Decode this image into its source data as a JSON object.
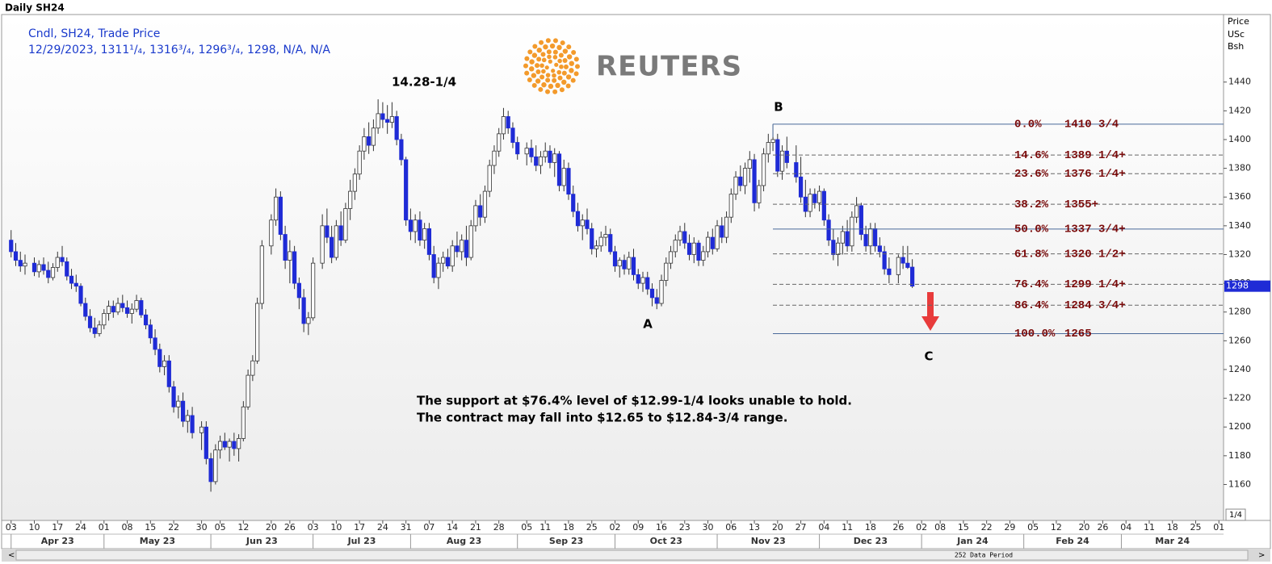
{
  "page_title": "Daily SH24",
  "chart_data": {
    "type": "candlestick",
    "legend": [
      "Cndl, SH24, Trade Price",
      "12/29/2023, 1311¹/₄, 1316³/₄, 1296³/₄, 1298, N/A, N/A"
    ],
    "y_label": [
      "Price",
      "USc",
      "Bsh"
    ],
    "price_fraction": "1/4",
    "data_period": "252 Data Period",
    "logo": "REUTERS",
    "annotations": [
      "14.28-1/4",
      "B",
      "A",
      "C"
    ],
    "note": [
      "The support at $76.4% level of $12.99-1/4 looks unable to hold.",
      "The contract may fall into $12.65 to $12.84-3/4 range."
    ],
    "up_color": "#ffffff",
    "down_color": "#1f2bd6",
    "fib_color": "#7a0a0a",
    "xlim": [
      "2023-03-31",
      "2024-04-02"
    ],
    "ylim": [
      1135,
      1487
    ],
    "yticks": [
      1160,
      1180,
      1200,
      1220,
      1240,
      1260,
      1280,
      1300,
      1320,
      1340,
      1360,
      1380,
      1400,
      1420,
      1440
    ],
    "xticks": [
      {
        "value": "2023-04-03",
        "label": "03"
      },
      {
        "value": "2023-04-10",
        "label": "10"
      },
      {
        "value": "2023-04-17",
        "label": "17"
      },
      {
        "value": "2023-04-24",
        "label": "24"
      },
      {
        "value": "2023-05-01",
        "label": "01"
      },
      {
        "value": "2023-05-08",
        "label": "08"
      },
      {
        "value": "2023-05-15",
        "label": "15"
      },
      {
        "value": "2023-05-22",
        "label": "22"
      },
      {
        "value": "2023-05-30",
        "label": "30"
      },
      {
        "value": "2023-06-05",
        "label": "05"
      },
      {
        "value": "2023-06-12",
        "label": "12"
      },
      {
        "value": "2023-06-20",
        "label": "20"
      },
      {
        "value": "2023-06-26",
        "label": "26"
      },
      {
        "value": "2023-07-03",
        "label": "03"
      },
      {
        "value": "2023-07-10",
        "label": "10"
      },
      {
        "value": "2023-07-17",
        "label": "17"
      },
      {
        "value": "2023-07-24",
        "label": "24"
      },
      {
        "value": "2023-07-31",
        "label": "31"
      },
      {
        "value": "2023-08-07",
        "label": "07"
      },
      {
        "value": "2023-08-14",
        "label": "14"
      },
      {
        "value": "2023-08-21",
        "label": "21"
      },
      {
        "value": "2023-08-28",
        "label": "28"
      },
      {
        "value": "2023-09-05",
        "label": "05"
      },
      {
        "value": "2023-09-11",
        "label": "11"
      },
      {
        "value": "2023-09-18",
        "label": "18"
      },
      {
        "value": "2023-09-25",
        "label": "25"
      },
      {
        "value": "2023-10-02",
        "label": "02"
      },
      {
        "value": "2023-10-09",
        "label": "09"
      },
      {
        "value": "2023-10-16",
        "label": "16"
      },
      {
        "value": "2023-10-23",
        "label": "23"
      },
      {
        "value": "2023-10-30",
        "label": "30"
      },
      {
        "value": "2023-11-06",
        "label": "06"
      },
      {
        "value": "2023-11-13",
        "label": "13"
      },
      {
        "value": "2023-11-20",
        "label": "20"
      },
      {
        "value": "2023-11-27",
        "label": "27"
      },
      {
        "value": "2023-12-04",
        "label": "04"
      },
      {
        "value": "2023-12-11",
        "label": "11"
      },
      {
        "value": "2023-12-18",
        "label": "18"
      },
      {
        "value": "2023-12-26",
        "label": "26"
      },
      {
        "value": "2024-01-02",
        "label": "02"
      },
      {
        "value": "2024-01-08",
        "label": "08"
      },
      {
        "value": "2024-01-15",
        "label": "15"
      },
      {
        "value": "2024-01-22",
        "label": "22"
      },
      {
        "value": "2024-01-29",
        "label": "29"
      },
      {
        "value": "2024-02-05",
        "label": "05"
      },
      {
        "value": "2024-02-12",
        "label": "12"
      },
      {
        "value": "2024-02-20",
        "label": "20"
      },
      {
        "value": "2024-02-26",
        "label": "26"
      },
      {
        "value": "2024-03-04",
        "label": "04"
      },
      {
        "value": "2024-03-11",
        "label": "11"
      },
      {
        "value": "2024-03-18",
        "label": "18"
      },
      {
        "value": "2024-03-25",
        "label": "25"
      },
      {
        "value": "2024-04-01",
        "label": "01"
      }
    ],
    "months": [
      {
        "value": "2023-04-03",
        "label": "Apr 23"
      },
      {
        "value": "2023-05-01",
        "label": "May 23"
      },
      {
        "value": "2023-06-01",
        "label": "Jun 23"
      },
      {
        "value": "2023-07-03",
        "label": "Jul 23"
      },
      {
        "value": "2023-08-01",
        "label": "Aug 23"
      },
      {
        "value": "2023-09-01",
        "label": "Sep 23"
      },
      {
        "value": "2023-10-02",
        "label": "Oct 23"
      },
      {
        "value": "2023-11-01",
        "label": "Nov 23"
      },
      {
        "value": "2023-12-01",
        "label": "Dec 23"
      },
      {
        "value": "2024-01-02",
        "label": "Jan 24"
      },
      {
        "value": "2024-02-01",
        "label": "Feb 24"
      },
      {
        "value": "2024-03-01",
        "label": "Mar 24"
      }
    ],
    "fibonacci": [
      {
        "ratio": "0.0%",
        "level": {
          "value": 1410.75,
          "label": "1410 3/4"
        },
        "line": "solid"
      },
      {
        "ratio": "14.6%",
        "level": {
          "value": 1389.25,
          "label": "1389 1/4+"
        },
        "line": "dashed"
      },
      {
        "ratio": "23.6%",
        "level": {
          "value": 1376.25,
          "label": "1376 1/4+"
        },
        "line": "dashed"
      },
      {
        "ratio": "38.2%",
        "level": {
          "value": 1355,
          "label": "1355+"
        },
        "line": "dashed"
      },
      {
        "ratio": "50.0%",
        "level": {
          "value": 1337.75,
          "label": "1337 3/4+"
        },
        "line": "solid"
      },
      {
        "ratio": "61.8%",
        "level": {
          "value": 1320.5,
          "label": "1320 1/2+"
        },
        "line": "dashed"
      },
      {
        "ratio": "76.4%",
        "level": {
          "value": 1299.25,
          "label": "1299 1/4+"
        },
        "line": "dashed"
      },
      {
        "ratio": "86.4%",
        "level": {
          "value": 1284.75,
          "label": "1284 3/4+"
        },
        "line": "dashed"
      },
      {
        "ratio": "100.0%",
        "level": {
          "value": 1265,
          "label": "1265"
        },
        "line": "solid"
      }
    ],
    "x": [
      "2023-04-03",
      "2023-04-04",
      "2023-04-05",
      "2023-04-06",
      "2023-04-10",
      "2023-04-11",
      "2023-04-12",
      "2023-04-13",
      "2023-04-14",
      "2023-04-17",
      "2023-04-18",
      "2023-04-19",
      "2023-04-20",
      "2023-04-21",
      "2023-04-24",
      "2023-04-25",
      "2023-04-26",
      "2023-04-27",
      "2023-04-28",
      "2023-05-01",
      "2023-05-02",
      "2023-05-03",
      "2023-05-04",
      "2023-05-05",
      "2023-05-08",
      "2023-05-09",
      "2023-05-10",
      "2023-05-11",
      "2023-05-12",
      "2023-05-15",
      "2023-05-16",
      "2023-05-17",
      "2023-05-18",
      "2023-05-19",
      "2023-05-22",
      "2023-05-23",
      "2023-05-24",
      "2023-05-25",
      "2023-05-26",
      "2023-05-30",
      "2023-05-31",
      "2023-06-01",
      "2023-06-02",
      "2023-06-05",
      "2023-06-06",
      "2023-06-07",
      "2023-06-08",
      "2023-06-09",
      "2023-06-12",
      "2023-06-13",
      "2023-06-14",
      "2023-06-15",
      "2023-06-16",
      "2023-06-20",
      "2023-06-21",
      "2023-06-22",
      "2023-06-23",
      "2023-06-26",
      "2023-06-27",
      "2023-06-28",
      "2023-06-29",
      "2023-06-30",
      "2023-07-03",
      "2023-07-05",
      "2023-07-06",
      "2023-07-07",
      "2023-07-10",
      "2023-07-11",
      "2023-07-12",
      "2023-07-13",
      "2023-07-14",
      "2023-07-17",
      "2023-07-18",
      "2023-07-19",
      "2023-07-20",
      "2023-07-21",
      "2023-07-24",
      "2023-07-25",
      "2023-07-26",
      "2023-07-27",
      "2023-07-28",
      "2023-07-31",
      "2023-08-01",
      "2023-08-02",
      "2023-08-03",
      "2023-08-04",
      "2023-08-07",
      "2023-08-08",
      "2023-08-09",
      "2023-08-10",
      "2023-08-11",
      "2023-08-14",
      "2023-08-15",
      "2023-08-16",
      "2023-08-17",
      "2023-08-18",
      "2023-08-21",
      "2023-08-22",
      "2023-08-23",
      "2023-08-24",
      "2023-08-25",
      "2023-08-28",
      "2023-08-29",
      "2023-08-30",
      "2023-08-31",
      "2023-09-01",
      "2023-09-05",
      "2023-09-06",
      "2023-09-07",
      "2023-09-08",
      "2023-09-11",
      "2023-09-12",
      "2023-09-13",
      "2023-09-14",
      "2023-09-15",
      "2023-09-18",
      "2023-09-19",
      "2023-09-20",
      "2023-09-21",
      "2023-09-22",
      "2023-09-25",
      "2023-09-26",
      "2023-09-27",
      "2023-09-28",
      "2023-09-29",
      "2023-10-02",
      "2023-10-03",
      "2023-10-04",
      "2023-10-05",
      "2023-10-06",
      "2023-10-09",
      "2023-10-10",
      "2023-10-11",
      "2023-10-12",
      "2023-10-13",
      "2023-10-16",
      "2023-10-17",
      "2023-10-18",
      "2023-10-19",
      "2023-10-20",
      "2023-10-23",
      "2023-10-24",
      "2023-10-25",
      "2023-10-26",
      "2023-10-27",
      "2023-10-30",
      "2023-10-31",
      "2023-11-01",
      "2023-11-02",
      "2023-11-03",
      "2023-11-06",
      "2023-11-07",
      "2023-11-08",
      "2023-11-09",
      "2023-11-10",
      "2023-11-13",
      "2023-11-14",
      "2023-11-15",
      "2023-11-16",
      "2023-11-17",
      "2023-11-20",
      "2023-11-21",
      "2023-11-22",
      "2023-11-24",
      "2023-11-27",
      "2023-11-28",
      "2023-11-29",
      "2023-11-30",
      "2023-12-01",
      "2023-12-04",
      "2023-12-05",
      "2023-12-06",
      "2023-12-07",
      "2023-12-08",
      "2023-12-11",
      "2023-12-12",
      "2023-12-13",
      "2023-12-14",
      "2023-12-15",
      "2023-12-18",
      "2023-12-19",
      "2023-12-20",
      "2023-12-21",
      "2023-12-22",
      "2023-12-26",
      "2023-12-27",
      "2023-12-28",
      "2023-12-29"
    ],
    "open": [
      1330,
      1322,
      1316,
      1312,
      1314,
      1308,
      1313,
      1309,
      1304,
      1311,
      1318,
      1315,
      1305,
      1300,
      1298,
      1286,
      1277,
      1269,
      1265,
      1271,
      1279,
      1284,
      1280,
      1286,
      1283,
      1279,
      1282,
      1288,
      1278,
      1271,
      1262,
      1254,
      1242,
      1246,
      1228,
      1214,
      1218,
      1204,
      1208,
      1196,
      1200,
      1178,
      1162,
      1184,
      1190,
      1186,
      1190,
      1185,
      1192,
      1214,
      1236,
      1246,
      1286,
      1326,
      1344,
      1360,
      1334,
      1316,
      1322,
      1300,
      1290,
      1272,
      1276,
      1314,
      1340,
      1332,
      1318,
      1340,
      1330,
      1352,
      1364,
      1376,
      1392,
      1402,
      1396,
      1408,
      1418,
      1414,
      1412,
      1416,
      1400,
      1386,
      1344,
      1336,
      1344,
      1330,
      1338,
      1320,
      1304,
      1314,
      1318,
      1312,
      1326,
      1322,
      1330,
      1318,
      1340,
      1354,
      1346,
      1364,
      1382,
      1392,
      1404,
      1416,
      1408,
      1398,
      1390,
      1394,
      1388,
      1382,
      1388,
      1392,
      1384,
      1390,
      1368,
      1380,
      1362,
      1350,
      1340,
      1344,
      1338,
      1324,
      1326,
      1332,
      1334,
      1322,
      1312,
      1316,
      1310,
      1318,
      1306,
      1300,
      1304,
      1296,
      1290,
      1286,
      1302,
      1314,
      1322,
      1330,
      1336,
      1328,
      1320,
      1328,
      1316,
      1322,
      1332,
      1324,
      1340,
      1332,
      1346,
      1362,
      1374,
      1368,
      1380,
      1386,
      1356,
      1368,
      1390,
      1398,
      1400,
      1378,
      1392,
      1384,
      1374,
      1360,
      1350,
      1362,
      1356,
      1364,
      1344,
      1330,
      1320,
      1328,
      1336,
      1326,
      1346,
      1354,
      1334,
      1326,
      1338,
      1326,
      1322,
      1310,
      1306,
      1318,
      1314,
      1311.25
    ],
    "high": [
      1337,
      1328,
      1322,
      1320,
      1318,
      1316,
      1318,
      1315,
      1314,
      1322,
      1326,
      1318,
      1310,
      1306,
      1300,
      1290,
      1282,
      1276,
      1274,
      1282,
      1288,
      1288,
      1290,
      1292,
      1288,
      1286,
      1292,
      1290,
      1282,
      1275,
      1268,
      1258,
      1250,
      1250,
      1232,
      1222,
      1224,
      1212,
      1214,
      1204,
      1204,
      1182,
      1188,
      1194,
      1196,
      1192,
      1196,
      1195,
      1218,
      1240,
      1250,
      1290,
      1330,
      1348,
      1366,
      1364,
      1340,
      1330,
      1326,
      1304,
      1296,
      1280,
      1318,
      1348,
      1352,
      1340,
      1344,
      1350,
      1356,
      1372,
      1380,
      1396,
      1408,
      1412,
      1414,
      1428,
      1426,
      1424,
      1426,
      1420,
      1404,
      1388,
      1352,
      1348,
      1350,
      1342,
      1342,
      1326,
      1318,
      1322,
      1324,
      1330,
      1336,
      1334,
      1340,
      1344,
      1358,
      1362,
      1368,
      1386,
      1396,
      1408,
      1422,
      1420,
      1412,
      1402,
      1398,
      1400,
      1396,
      1392,
      1398,
      1396,
      1394,
      1392,
      1386,
      1384,
      1368,
      1356,
      1348,
      1352,
      1342,
      1330,
      1336,
      1340,
      1338,
      1326,
      1318,
      1320,
      1322,
      1324,
      1310,
      1308,
      1308,
      1300,
      1296,
      1306,
      1318,
      1326,
      1334,
      1340,
      1342,
      1334,
      1332,
      1330,
      1326,
      1336,
      1338,
      1344,
      1346,
      1350,
      1366,
      1378,
      1382,
      1384,
      1392,
      1390,
      1372,
      1394,
      1404,
      1410.75,
      1404,
      1396,
      1402,
      1396,
      1388,
      1372,
      1366,
      1366,
      1368,
      1366,
      1348,
      1338,
      1332,
      1340,
      1344,
      1350,
      1360,
      1356,
      1340,
      1342,
      1342,
      1332,
      1326,
      1318,
      1320,
      1326,
      1326,
      1316.75
    ],
    "low": [
      1318,
      1312,
      1308,
      1306,
      1305,
      1304,
      1306,
      1300,
      1302,
      1308,
      1312,
      1302,
      1296,
      1294,
      1284,
      1274,
      1266,
      1262,
      1263,
      1268,
      1274,
      1276,
      1278,
      1280,
      1276,
      1272,
      1280,
      1276,
      1268,
      1258,
      1250,
      1238,
      1236,
      1224,
      1210,
      1206,
      1200,
      1196,
      1192,
      1184,
      1174,
      1155,
      1160,
      1178,
      1184,
      1176,
      1180,
      1176,
      1190,
      1212,
      1232,
      1244,
      1282,
      1320,
      1340,
      1330,
      1310,
      1300,
      1296,
      1282,
      1266,
      1264,
      1274,
      1310,
      1328,
      1314,
      1316,
      1326,
      1328,
      1344,
      1358,
      1372,
      1386,
      1390,
      1392,
      1404,
      1408,
      1404,
      1408,
      1396,
      1382,
      1340,
      1330,
      1328,
      1326,
      1324,
      1316,
      1300,
      1296,
      1308,
      1310,
      1308,
      1318,
      1316,
      1312,
      1316,
      1336,
      1340,
      1342,
      1360,
      1376,
      1388,
      1400,
      1404,
      1394,
      1386,
      1382,
      1384,
      1378,
      1376,
      1384,
      1380,
      1374,
      1364,
      1364,
      1358,
      1346,
      1336,
      1330,
      1334,
      1320,
      1318,
      1322,
      1326,
      1320,
      1308,
      1304,
      1306,
      1306,
      1302,
      1296,
      1294,
      1292,
      1284,
      1282,
      1284,
      1298,
      1310,
      1318,
      1326,
      1324,
      1316,
      1314,
      1312,
      1312,
      1318,
      1320,
      1322,
      1328,
      1328,
      1342,
      1358,
      1364,
      1362,
      1370,
      1350,
      1352,
      1364,
      1384,
      1392,
      1374,
      1372,
      1380,
      1370,
      1356,
      1346,
      1346,
      1352,
      1350,
      1340,
      1326,
      1316,
      1312,
      1320,
      1322,
      1322,
      1342,
      1330,
      1322,
      1320,
      1322,
      1318,
      1306,
      1300,
      1300,
      1310,
      1310,
      1296.75
    ],
    "close": [
      1322,
      1316,
      1312,
      1314,
      1308,
      1313,
      1309,
      1304,
      1311,
      1318,
      1315,
      1305,
      1300,
      1298,
      1286,
      1277,
      1269,
      1265,
      1271,
      1279,
      1284,
      1280,
      1286,
      1283,
      1279,
      1282,
      1288,
      1278,
      1271,
      1262,
      1254,
      1242,
      1246,
      1228,
      1214,
      1218,
      1204,
      1208,
      1196,
      1200,
      1178,
      1162,
      1184,
      1190,
      1186,
      1190,
      1185,
      1192,
      1214,
      1236,
      1246,
      1286,
      1326,
      1344,
      1360,
      1334,
      1316,
      1322,
      1300,
      1290,
      1272,
      1276,
      1314,
      1340,
      1332,
      1318,
      1340,
      1330,
      1352,
      1364,
      1376,
      1392,
      1402,
      1396,
      1408,
      1418,
      1414,
      1412,
      1416,
      1400,
      1386,
      1344,
      1336,
      1344,
      1330,
      1338,
      1320,
      1304,
      1314,
      1318,
      1312,
      1326,
      1322,
      1330,
      1318,
      1340,
      1354,
      1346,
      1364,
      1382,
      1392,
      1404,
      1416,
      1408,
      1398,
      1390,
      1394,
      1388,
      1382,
      1388,
      1392,
      1384,
      1390,
      1368,
      1380,
      1362,
      1350,
      1340,
      1344,
      1338,
      1324,
      1326,
      1332,
      1334,
      1322,
      1312,
      1316,
      1310,
      1318,
      1306,
      1300,
      1304,
      1296,
      1290,
      1286,
      1302,
      1314,
      1322,
      1330,
      1336,
      1328,
      1320,
      1328,
      1316,
      1322,
      1332,
      1324,
      1340,
      1332,
      1346,
      1362,
      1374,
      1368,
      1380,
      1386,
      1356,
      1368,
      1390,
      1398,
      1400,
      1378,
      1392,
      1384,
      1374,
      1360,
      1350,
      1362,
      1356,
      1364,
      1344,
      1330,
      1320,
      1328,
      1336,
      1326,
      1346,
      1354,
      1334,
      1326,
      1338,
      1326,
      1322,
      1310,
      1306,
      1318,
      1314,
      1311,
      1298
    ]
  }
}
